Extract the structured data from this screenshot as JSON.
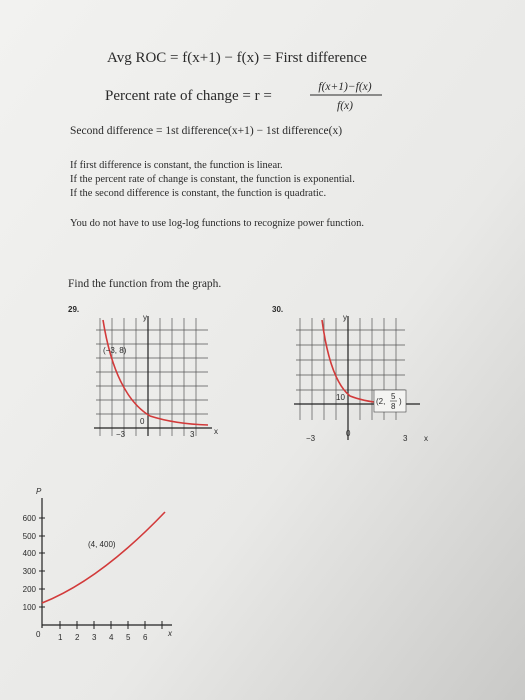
{
  "formulas": {
    "avg_roc": "Avg ROC = f(x+1) − f(x) = First difference",
    "percent_label": "Percent rate of change = r =",
    "percent_num": "f(x+1)−f(x)",
    "percent_den": "f(x)",
    "second_difference": "Second difference = 1st difference(x+1) − 1st difference(x)"
  },
  "rules": [
    "If first difference is constant, the function is linear.",
    "If the percent rate of change is constant, the function is exponential.",
    "If the second difference is constant, the function is quadratic."
  ],
  "note": "You do not have to use log-log functions to recognize power function.",
  "prompt": "Find the function from the graph.",
  "problems": [
    {
      "number": "29.",
      "y_axis": "y",
      "x_axis": "x",
      "point": "(−3, 8)",
      "x_labels": [
        "−3",
        "0",
        "3"
      ]
    },
    {
      "number": "30.",
      "y_axis": "y",
      "x_axis": "x",
      "y_label": "10",
      "point_x": "(2,",
      "point_num": "5",
      "point_den": "8",
      "point_close": ")",
      "x_labels": [
        "−3",
        "0",
        "3"
      ]
    },
    {
      "y_axis": "P",
      "x_axis": "x",
      "point": "(4, 400)",
      "y_labels": [
        "600",
        "500",
        "400",
        "300",
        "200",
        "100"
      ],
      "x_labels": [
        "0",
        "1",
        "2",
        "3",
        "4",
        "5",
        "6"
      ]
    }
  ]
}
